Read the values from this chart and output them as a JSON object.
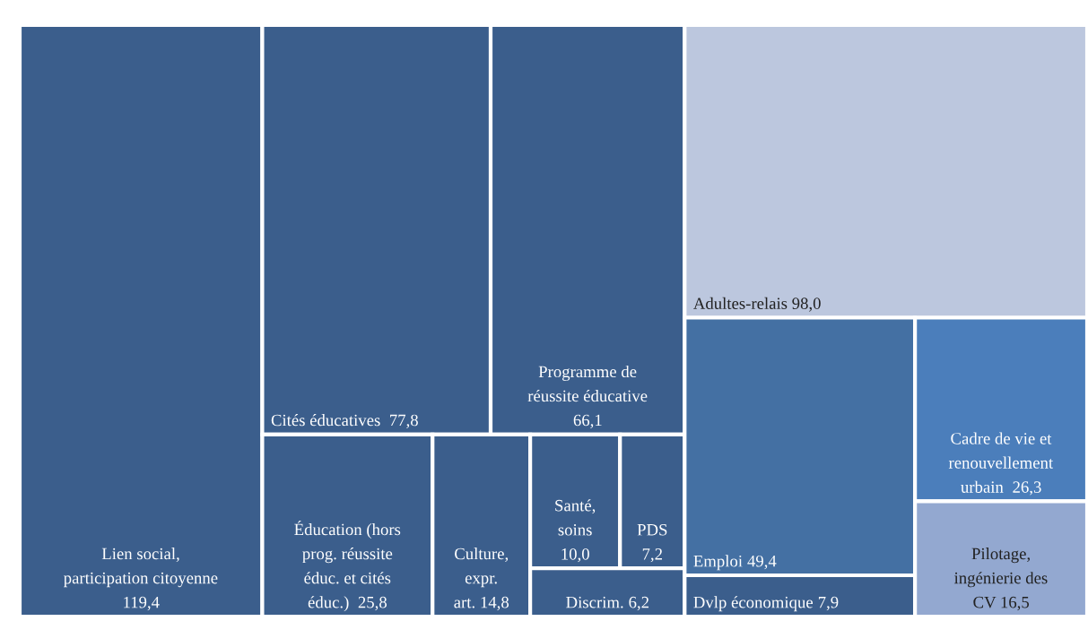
{
  "chart_data": {
    "type": "other",
    "categories": [
      "Lien social,\nparticipation citoyenne\n",
      "Cités éducatives  ",
      "Programme de\nréussite éducative\n",
      "Éducation (hors\nprog. réussite\néduc. et cités\néduc.)  ",
      "Culture,\nexpr.\nart. ",
      "Santé,\nsoins\n",
      "PDS\n",
      "Discrim. ",
      "Adultes-relais ",
      "Emploi ",
      "Dvlp économique ",
      "Cadre de vie et\nrenouvellement\nurbain  ",
      "Pilotage,\ningénierie des\nCV "
    ],
    "values": [
      119.4,
      77.8,
      66.1,
      25.8,
      14.8,
      10.0,
      7.2,
      6.2,
      98.0,
      49.4,
      7.9,
      26.3,
      16.5
    ],
    "value_labels": [
      "119,4",
      "77,8",
      "66,1",
      "25,8",
      "14,8",
      "10,0",
      "7,2",
      "6,2",
      "98,0",
      "49,4",
      "7,9",
      "26,3",
      "16,5"
    ],
    "colors": [
      "#3b5e8c",
      "#3b5e8c",
      "#3b5e8c",
      "#3b5e8c",
      "#3b5e8c",
      "#3b5e8c",
      "#3b5e8c",
      "#3b5e8c",
      "#bcc7de",
      "#4470a3",
      "#3b5e8c",
      "#4b7ebb",
      "#93a8d0"
    ]
  }
}
